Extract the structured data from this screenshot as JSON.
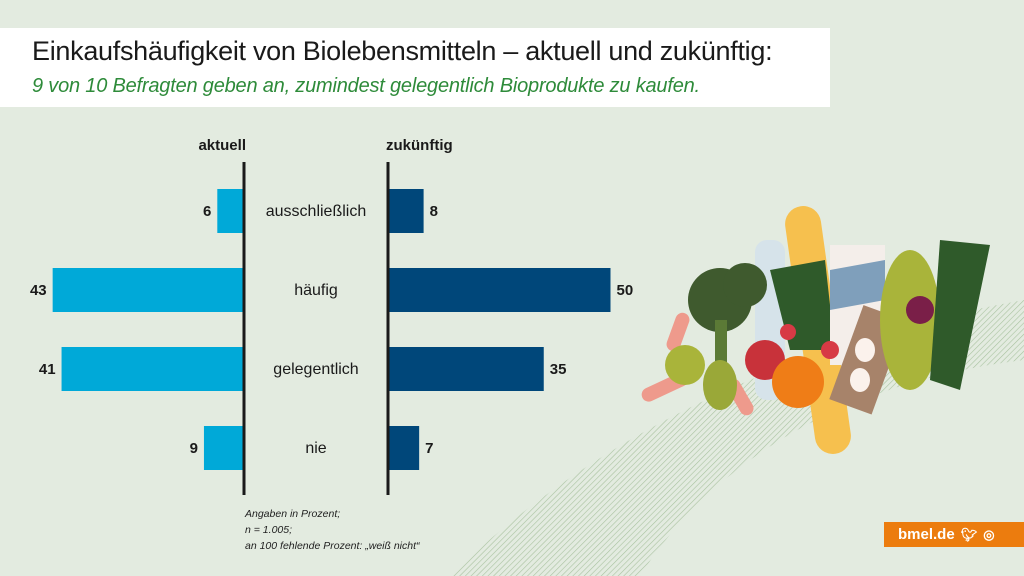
{
  "header": {
    "title": "Einkaufshäufigkeit von Biolebensmitteln – aktuell und zukünftig:",
    "subtitle": "9 von 10 Befragten geben an, zumindest gelegentlich Bioprodukte zu kaufen."
  },
  "chart_data": {
    "type": "bar",
    "orientation": "horizontal-butterfly",
    "title": "Einkaufshäufigkeit von Biolebensmitteln – aktuell und zukünftig",
    "categories": [
      "ausschließlich",
      "häufig",
      "gelegentlich",
      "nie"
    ],
    "series": [
      {
        "name": "aktuell",
        "values": [
          6,
          43,
          41,
          9
        ],
        "color": "#00a9d8",
        "direction": "left"
      },
      {
        "name": "zukünftig",
        "values": [
          8,
          50,
          35,
          7
        ],
        "color": "#00477a",
        "direction": "right"
      }
    ],
    "unit": "Prozent",
    "xlim": [
      0,
      50
    ],
    "grid": false
  },
  "notes": [
    "Angaben in Prozent;",
    "n = 1.005;",
    "an 100 fehlende Prozent: „weiß nicht“"
  ],
  "footer": {
    "brand": "bmel.de",
    "icons": [
      "twitter-icon",
      "instagram-icon"
    ]
  },
  "colors": {
    "background": "#e3ebe0",
    "subtitle": "#2e8b3a",
    "brand": "#ec7c0e"
  }
}
